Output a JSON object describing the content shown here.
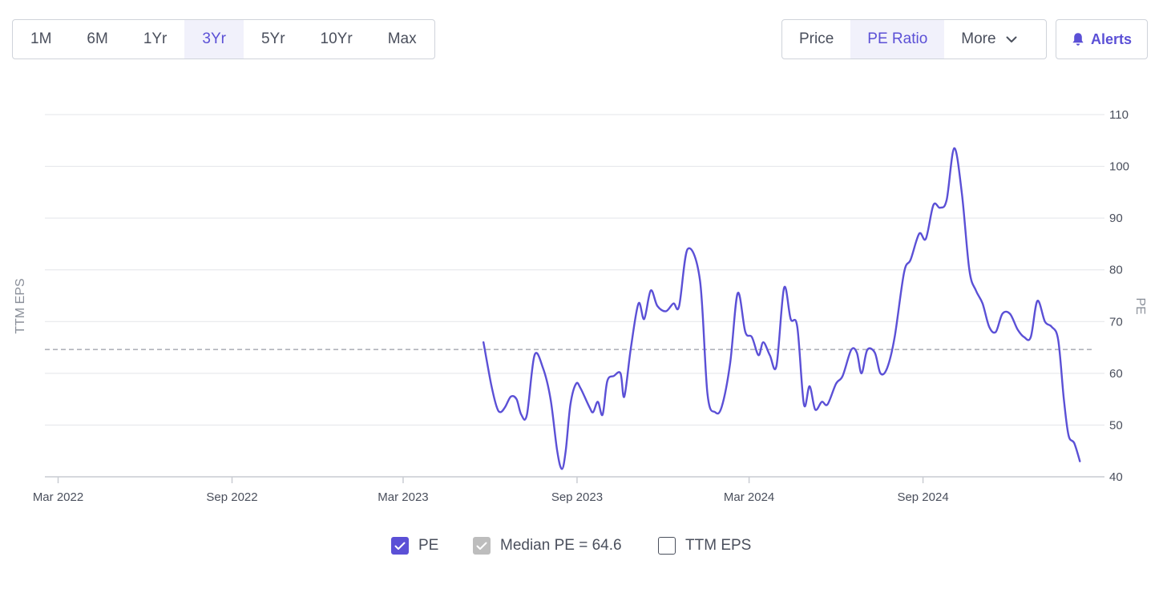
{
  "range_tabs": [
    "1M",
    "6M",
    "1Yr",
    "3Yr",
    "5Yr",
    "10Yr",
    "Max"
  ],
  "range_active": "3Yr",
  "metric_tabs": {
    "price": "Price",
    "pe_ratio": "PE Ratio",
    "more": "More"
  },
  "metric_active": "PE Ratio",
  "alerts_label": "Alerts",
  "legend": {
    "pe": "PE",
    "median": "Median PE = 64.6",
    "ttm_eps": "TTM EPS"
  },
  "colors": {
    "accent": "#5b50d6",
    "median_line": "#a9acb3",
    "grid": "#e3e5e9"
  },
  "chart_data": {
    "type": "line",
    "ylabel_right": "PE",
    "ylabel_left": "TTM EPS",
    "ylim": [
      40,
      110
    ],
    "yticks": [
      40,
      50,
      60,
      70,
      80,
      90,
      100,
      110
    ],
    "xlim": [
      "2022-02-15",
      "2025-03-12"
    ],
    "xticks": [
      {
        "date": "2022-03-01",
        "label": "Mar 2022"
      },
      {
        "date": "2022-09-01",
        "label": "Sep 2022"
      },
      {
        "date": "2023-03-01",
        "label": "Mar 2023"
      },
      {
        "date": "2023-09-01",
        "label": "Sep 2023"
      },
      {
        "date": "2024-03-01",
        "label": "Mar 2024"
      },
      {
        "date": "2024-09-01",
        "label": "Sep 2024"
      }
    ],
    "median_pe": 64.6,
    "grid": true,
    "legend_position": "bottom-center",
    "series": [
      {
        "name": "PE",
        "color": "#5b50d6",
        "points": [
          [
            "2023-05-25",
            66.0
          ],
          [
            "2023-06-02",
            58.0
          ],
          [
            "2023-06-08",
            53.5
          ],
          [
            "2023-06-12",
            52.5
          ],
          [
            "2023-06-17",
            53.5
          ],
          [
            "2023-06-23",
            55.5
          ],
          [
            "2023-06-29",
            55.0
          ],
          [
            "2023-07-04",
            52.0
          ],
          [
            "2023-07-10",
            52.0
          ],
          [
            "2023-07-18",
            63.5
          ],
          [
            "2023-07-27",
            61.0
          ],
          [
            "2023-08-04",
            55.0
          ],
          [
            "2023-08-11",
            45.0
          ],
          [
            "2023-08-16",
            41.5
          ],
          [
            "2023-08-20",
            45.0
          ],
          [
            "2023-08-25",
            54.0
          ],
          [
            "2023-08-31",
            58.0
          ],
          [
            "2023-09-05",
            57.0
          ],
          [
            "2023-09-14",
            53.5
          ],
          [
            "2023-09-18",
            52.5
          ],
          [
            "2023-09-23",
            54.5
          ],
          [
            "2023-09-28",
            52.0
          ],
          [
            "2023-10-03",
            58.5
          ],
          [
            "2023-10-10",
            59.5
          ],
          [
            "2023-10-17",
            60.0
          ],
          [
            "2023-10-21",
            55.5
          ],
          [
            "2023-10-28",
            65.0
          ],
          [
            "2023-11-05",
            73.5
          ],
          [
            "2023-11-11",
            70.5
          ],
          [
            "2023-11-18",
            76.0
          ],
          [
            "2023-11-25",
            73.0
          ],
          [
            "2023-12-04",
            72.0
          ],
          [
            "2023-12-12",
            73.5
          ],
          [
            "2023-12-18",
            73.0
          ],
          [
            "2023-12-27",
            84.0
          ],
          [
            "2024-01-09",
            78.0
          ],
          [
            "2024-01-17",
            56.0
          ],
          [
            "2024-01-25",
            52.5
          ],
          [
            "2024-02-01",
            53.5
          ],
          [
            "2024-02-10",
            62.0
          ],
          [
            "2024-02-18",
            75.5
          ],
          [
            "2024-02-26",
            68.0
          ],
          [
            "2024-03-04",
            67.0
          ],
          [
            "2024-03-11",
            63.5
          ],
          [
            "2024-03-16",
            66.0
          ],
          [
            "2024-03-23",
            63.5
          ],
          [
            "2024-03-30",
            61.5
          ],
          [
            "2024-04-07",
            76.5
          ],
          [
            "2024-04-14",
            70.5
          ],
          [
            "2024-04-21",
            69.0
          ],
          [
            "2024-04-28",
            54.0
          ],
          [
            "2024-05-04",
            57.5
          ],
          [
            "2024-05-10",
            53.0
          ],
          [
            "2024-05-17",
            54.5
          ],
          [
            "2024-05-23",
            54.0
          ],
          [
            "2024-06-01",
            58.0
          ],
          [
            "2024-06-08",
            59.5
          ],
          [
            "2024-06-17",
            64.5
          ],
          [
            "2024-06-23",
            64.0
          ],
          [
            "2024-06-28",
            60.0
          ],
          [
            "2024-07-04",
            64.5
          ],
          [
            "2024-07-12",
            64.0
          ],
          [
            "2024-07-18",
            60.0
          ],
          [
            "2024-07-25",
            61.0
          ],
          [
            "2024-08-02",
            67.0
          ],
          [
            "2024-08-12",
            79.5
          ],
          [
            "2024-08-19",
            82.0
          ],
          [
            "2024-08-28",
            87.0
          ],
          [
            "2024-09-04",
            86.0
          ],
          [
            "2024-09-12",
            92.5
          ],
          [
            "2024-09-19",
            92.0
          ],
          [
            "2024-09-26",
            93.5
          ],
          [
            "2024-10-04",
            103.5
          ],
          [
            "2024-10-12",
            95.0
          ],
          [
            "2024-10-20",
            80.0
          ],
          [
            "2024-10-27",
            76.0
          ],
          [
            "2024-11-03",
            73.5
          ],
          [
            "2024-11-10",
            69.0
          ],
          [
            "2024-11-17",
            68.0
          ],
          [
            "2024-11-24",
            71.5
          ],
          [
            "2024-12-02",
            71.5
          ],
          [
            "2024-12-10",
            68.5
          ],
          [
            "2024-12-17",
            67.0
          ],
          [
            "2024-12-24",
            67.0
          ],
          [
            "2024-12-31",
            74.0
          ],
          [
            "2025-01-08",
            70.0
          ],
          [
            "2025-01-15",
            69.0
          ],
          [
            "2025-01-22",
            66.5
          ],
          [
            "2025-01-28",
            55.0
          ],
          [
            "2025-02-02",
            48.0
          ],
          [
            "2025-02-08",
            46.5
          ],
          [
            "2025-02-14",
            43.0
          ]
        ]
      }
    ]
  }
}
